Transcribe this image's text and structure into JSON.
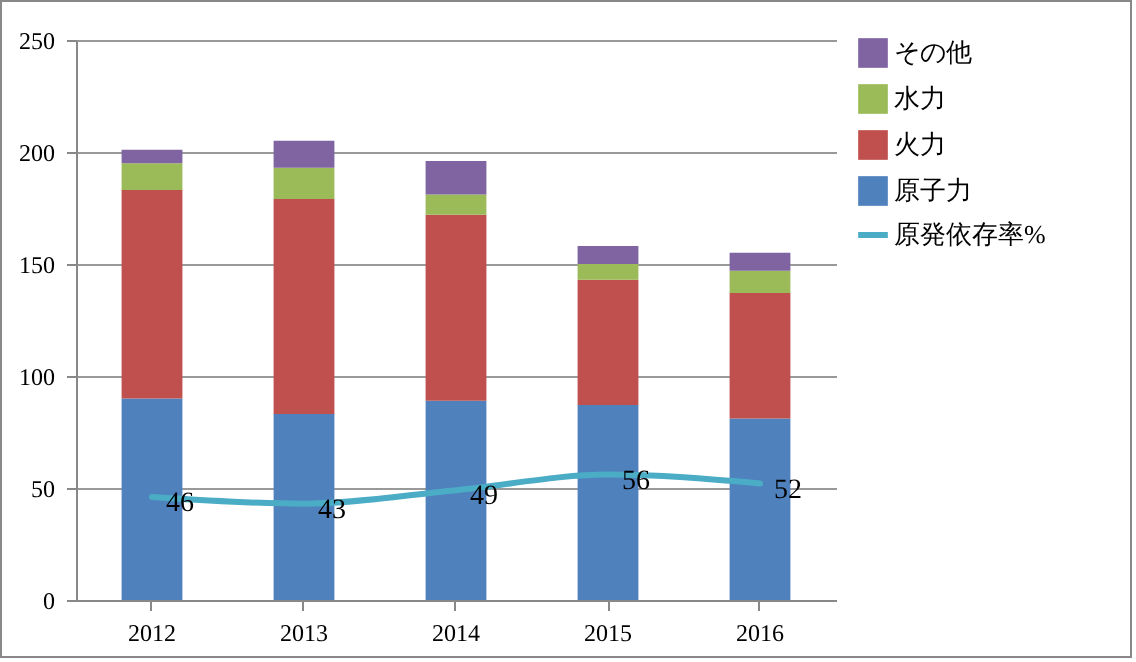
{
  "chart_data": {
    "type": "bar",
    "stacked": true,
    "categories": [
      "2012",
      "2013",
      "2014",
      "2015",
      "2016"
    ],
    "series": [
      {
        "name": "原子力",
        "color": "#4f81bd",
        "values": [
          90,
          83,
          89,
          87,
          81
        ]
      },
      {
        "name": "火力",
        "color": "#c0504d",
        "values": [
          93,
          96,
          83,
          56,
          56
        ]
      },
      {
        "name": "水力",
        "color": "#9bbb59",
        "values": [
          12,
          14,
          9,
          7,
          10
        ]
      },
      {
        "name": "その他",
        "color": "#8064a2",
        "values": [
          6,
          12,
          15,
          8,
          8
        ]
      },
      {
        "name": "原発依存率%",
        "type": "line",
        "color": "#4bacc6",
        "values": [
          46,
          43,
          49,
          56,
          52
        ],
        "value_labels": [
          "46",
          "43",
          "49",
          "56",
          "52"
        ]
      }
    ],
    "ylim": [
      0,
      250
    ],
    "yticks": [
      0,
      50,
      100,
      150,
      200,
      250
    ],
    "grid": "y",
    "legend": "right"
  }
}
